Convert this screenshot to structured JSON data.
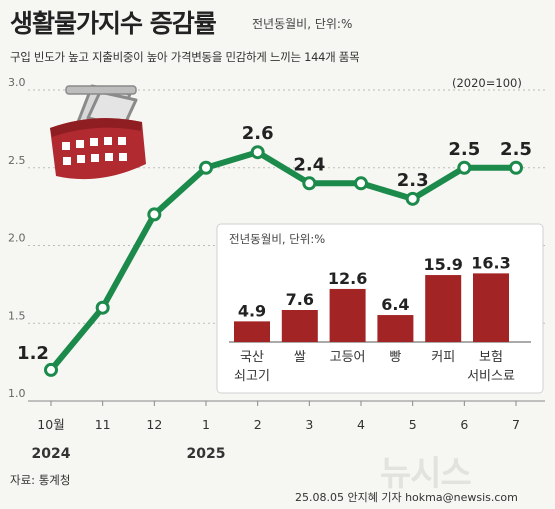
{
  "header": {
    "title": "생활물가지수 증감률",
    "unit_note": "전년동월비, 단위:%",
    "description": "구입 빈도가 높고 지출비중이 높아 가격변동을 민감하게 느끼는 144개 품목",
    "base_note": "(2020=100)"
  },
  "chart_data": [
    {
      "type": "line",
      "title": "생활물가지수 증감률",
      "unit": "전년동월비, 단위:%",
      "x": [
        "10월",
        "11",
        "12",
        "1",
        "2",
        "3",
        "4",
        "5",
        "6",
        "7"
      ],
      "year_labels": [
        {
          "at": "10월",
          "label": "2024"
        },
        {
          "at": "1",
          "label": "2025"
        }
      ],
      "values": [
        1.2,
        1.6,
        2.2,
        2.5,
        2.6,
        2.4,
        2.4,
        2.3,
        2.5,
        2.5
      ],
      "labeled_points": {
        "10월": "1.2",
        "2": "2.6",
        "3": "2.4",
        "5": "2.3",
        "6": "2.5",
        "7": "2.5"
      },
      "ylim": [
        1.0,
        3.0
      ],
      "yticks": [
        "1.0",
        "1.5",
        "2.0",
        "2.5",
        "3.0"
      ],
      "grid": true,
      "line_color": "#1c8a4b"
    },
    {
      "type": "bar",
      "title": "전년동월비, 단위:%",
      "categories": [
        "국산 쇠고기",
        "쌀",
        "고등어",
        "빵",
        "커피",
        "보험 서비스료"
      ],
      "category_lines": [
        [
          "국산",
          "쇠고기"
        ],
        [
          "쌀"
        ],
        [
          "고등어"
        ],
        [
          "빵"
        ],
        [
          "커피"
        ],
        [
          "보험",
          "서비스료"
        ]
      ],
      "values": [
        4.9,
        7.6,
        12.6,
        6.4,
        15.9,
        16.3
      ],
      "value_labels": [
        "4.9",
        "7.6",
        "12.6",
        "6.4",
        "15.9",
        "16.3"
      ],
      "ylim": [
        0,
        19
      ],
      "bar_color": "#a32424"
    }
  ],
  "icons": [
    "shopping-basket-icon"
  ],
  "footer": {
    "source": "자료: 통계청",
    "credit": "25.08.05 안지혜 기자 hokma@newsis.com",
    "watermark": "뉴시스"
  }
}
